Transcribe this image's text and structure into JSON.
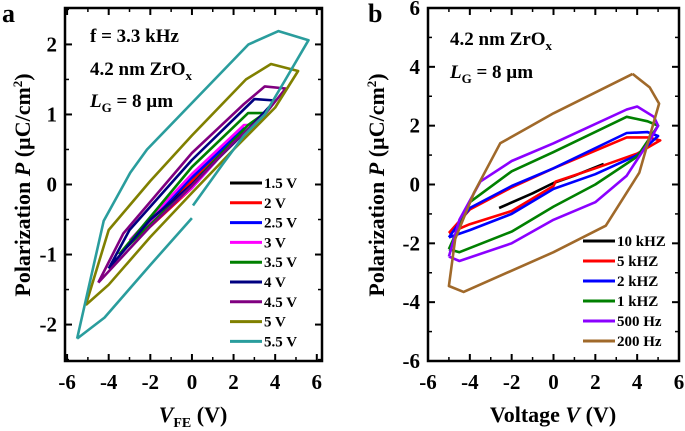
{
  "chart_data": [
    {
      "type": "line",
      "panel_letter": "a",
      "annotations": {
        "f": "f = 3.3 kHz",
        "film_main": "4.2 nm ZrO",
        "film_sub": "x",
        "lg_main": "L",
        "lg_sub": "G",
        "lg_rest": " = 8 µm"
      },
      "xlabel": {
        "main": "V",
        "sub": "FE",
        "rest": " (V)"
      },
      "ylabel": {
        "main": "Polarization ",
        "italic": "P",
        "rest": " (µC/cm",
        "sup": "2",
        "close": ")"
      },
      "xlim": [
        -6.1,
        6.25
      ],
      "ylim": [
        -2.52,
        2.52
      ],
      "xticks": [
        -6,
        -4,
        -2,
        0,
        2,
        4,
        6
      ],
      "yticks": [
        -2,
        -1,
        0,
        1,
        2
      ],
      "legend_position": "bottom-right",
      "series": [
        {
          "name": "1.5 V",
          "color": "#000000",
          "points": [
            [
              -1.5,
              -0.4
            ],
            [
              0,
              0.05
            ],
            [
              1.5,
              0.5
            ],
            [
              0.8,
              0.25
            ],
            [
              0,
              -0.02
            ],
            [
              -1.5,
              -0.4
            ]
          ]
        },
        {
          "name": "2 V",
          "color": "#ff0000",
          "points": [
            [
              -2,
              -0.6
            ],
            [
              0,
              0.05
            ],
            [
              2,
              0.7
            ],
            [
              1,
              0.35
            ],
            [
              0,
              -0.05
            ],
            [
              -2,
              -0.6
            ]
          ]
        },
        {
          "name": "2.5 V",
          "color": "#0000ff",
          "points": [
            [
              -2.5,
              -0.65
            ],
            [
              0,
              0.1
            ],
            [
              2.5,
              0.8
            ],
            [
              1.2,
              0.35
            ],
            [
              0,
              -0.05
            ],
            [
              -2.5,
              -0.65
            ]
          ]
        },
        {
          "name": "3 V",
          "color": "#ff00ff",
          "points": [
            [
              -3,
              -0.8
            ],
            [
              0,
              0.15
            ],
            [
              2.5,
              0.85
            ],
            [
              3,
              0.85
            ],
            [
              2,
              0.62
            ],
            [
              0,
              -0.05
            ],
            [
              -3,
              -0.8
            ]
          ]
        },
        {
          "name": "3.5 V",
          "color": "#008000",
          "points": [
            [
              -3.5,
              -1.0
            ],
            [
              0,
              0.25
            ],
            [
              2.7,
              1.02
            ],
            [
              3.5,
              1.02
            ],
            [
              2.7,
              0.85
            ],
            [
              0,
              0
            ],
            [
              -3.5,
              -1.0
            ]
          ]
        },
        {
          "name": "4 V",
          "color": "#000080",
          "points": [
            [
              -4,
              -1.2
            ],
            [
              -3,
              -0.65
            ],
            [
              0,
              0.35
            ],
            [
              3,
              1.22
            ],
            [
              4,
              1.2
            ],
            [
              3,
              0.88
            ],
            [
              0,
              0
            ],
            [
              -2,
              -0.5
            ],
            [
              -4,
              -1.2
            ]
          ]
        },
        {
          "name": "4.5 V",
          "color": "#800080",
          "points": [
            [
              -4.5,
              -1.4
            ],
            [
              -3.3,
              -0.7
            ],
            [
              0,
              0.45
            ],
            [
              2.5,
              1.15
            ],
            [
              3.5,
              1.4
            ],
            [
              4.5,
              1.37
            ],
            [
              3.5,
              1.0
            ],
            [
              2,
              0.6
            ],
            [
              0,
              -0.02
            ],
            [
              -2,
              -0.6
            ],
            [
              -4.5,
              -1.4
            ]
          ]
        },
        {
          "name": "5 V",
          "color": "#808000",
          "points": [
            [
              -5.1,
              -1.72
            ],
            [
              -4,
              -0.65
            ],
            [
              -2,
              0.05
            ],
            [
              0,
              0.7
            ],
            [
              2.6,
              1.5
            ],
            [
              3.8,
              1.72
            ],
            [
              5.1,
              1.62
            ],
            [
              4,
              1.1
            ],
            [
              2,
              0.5
            ],
            [
              0,
              -0.12
            ],
            [
              -2,
              -0.75
            ],
            [
              -4,
              -1.43
            ],
            [
              -5.1,
              -1.72
            ]
          ]
        },
        {
          "name": "5.5 V",
          "color": "#2a9d9d",
          "points": [
            [
              -5.52,
              -2.2
            ],
            [
              -4.24,
              -0.52
            ],
            [
              -2.96,
              0.17
            ],
            [
              -2.16,
              0.5
            ],
            [
              2.72,
              2.0
            ],
            [
              4.16,
              2.19
            ],
            [
              5.6,
              2.06
            ],
            [
              4.5,
              1.5
            ],
            [
              3.5,
              1.0
            ],
            [
              2.5,
              0.7
            ],
            [
              1.5,
              0.3
            ],
            [
              0.05,
              -0.3
            ],
            null,
            [
              0,
              -0.48
            ],
            [
              -2,
              -1.15
            ],
            [
              -4.2,
              -1.9
            ],
            [
              -5.52,
              -2.2
            ]
          ]
        }
      ]
    },
    {
      "type": "line",
      "panel_letter": "b",
      "annotations": {
        "film_main": "4.2 nm ZrO",
        "film_sub": "x",
        "lg_main": "L",
        "lg_sub": "G",
        "lg_rest": " = 8 µm"
      },
      "xlabel": {
        "main": "Voltage ",
        "italic": "V",
        "rest": " (V)"
      },
      "ylabel": {
        "main": "Polarization ",
        "italic": "P",
        "rest": " (µC/cm",
        "sup": "2",
        "close": ")"
      },
      "xlim": [
        -6,
        6
      ],
      "ylim": [
        -6,
        6
      ],
      "xticks": [
        -6,
        -4,
        -2,
        0,
        2,
        4,
        6
      ],
      "yticks": [
        -6,
        -4,
        -2,
        0,
        2,
        4,
        6
      ],
      "legend_position": "bottom-right",
      "series": [
        {
          "name": "10 kHZ",
          "color": "#000000",
          "points": [
            [
              -2.6,
              -0.8
            ],
            [
              -1,
              -0.3
            ],
            [
              0,
              0.05
            ],
            [
              1,
              0.3
            ],
            [
              2.4,
              0.7
            ]
          ]
        },
        {
          "name": "5 kHZ",
          "color": "#ff0000",
          "points": [
            [
              -5,
              -1.65
            ],
            [
              -4,
              -1.35
            ],
            [
              -2,
              -0.9
            ],
            [
              0,
              -0.05
            ],
            [
              0.1,
              0.1
            ],
            [
              2,
              0.55
            ],
            [
              4,
              1.05
            ],
            [
              5.1,
              1.5
            ],
            [
              4.5,
              1.6
            ],
            [
              3.5,
              1.6
            ],
            [
              0,
              0.55
            ],
            [
              -2,
              -0.1
            ],
            [
              -4,
              -0.85
            ],
            [
              -5,
              -1.65
            ]
          ]
        },
        {
          "name": "2 kHZ",
          "color": "#0000ff",
          "points": [
            [
              -5,
              -1.8
            ],
            [
              -4,
              -1.55
            ],
            [
              -2,
              -1.0
            ],
            [
              0,
              -0.15
            ],
            [
              2,
              0.35
            ],
            [
              4,
              1.0
            ],
            [
              5,
              1.65
            ],
            [
              4.5,
              1.78
            ],
            [
              3.5,
              1.75
            ],
            [
              0,
              0.55
            ],
            [
              -2,
              -0.05
            ],
            [
              -4,
              -0.8
            ],
            [
              -5,
              -1.8
            ]
          ]
        },
        {
          "name": "1 kHZ",
          "color": "#008000",
          "points": [
            [
              -5,
              -2.2
            ],
            [
              -4.5,
              -2.3
            ],
            [
              -2,
              -1.6
            ],
            [
              0,
              -0.75
            ],
            [
              2,
              0.0
            ],
            [
              4,
              0.95
            ],
            [
              5,
              2.0
            ],
            [
              4.5,
              2.15
            ],
            [
              3.5,
              2.3
            ],
            [
              0,
              1.1
            ],
            [
              -2,
              0.45
            ],
            [
              -4,
              -0.6
            ],
            [
              -5,
              -2.2
            ]
          ]
        },
        {
          "name": "500 Hz",
          "color": "#8b00ff",
          "points": [
            [
              -5,
              -2.45
            ],
            [
              -4.5,
              -2.6
            ],
            [
              -2,
              -2.0
            ],
            [
              0,
              -1.2
            ],
            [
              2,
              -0.6
            ],
            [
              3.5,
              0.3
            ],
            [
              4.6,
              1.5
            ],
            [
              5,
              2.0
            ],
            [
              4.8,
              2.3
            ],
            [
              4,
              2.65
            ],
            [
              3.5,
              2.55
            ],
            [
              0,
              1.4
            ],
            [
              -2,
              0.8
            ],
            [
              -3.5,
              0.1
            ],
            [
              -4.5,
              -1.2
            ],
            [
              -5,
              -2.45
            ]
          ]
        },
        {
          "name": "200 Hz",
          "color": "#a0692a",
          "points": [
            [
              3.78,
              3.76
            ],
            [
              4.6,
              3.3
            ],
            [
              5.05,
              2.75
            ],
            [
              4.1,
              0.4
            ],
            [
              2.5,
              -1.4
            ],
            [
              0,
              -2.3
            ],
            [
              -4.3,
              -3.65
            ],
            [
              -5,
              -3.45
            ],
            [
              -4.7,
              -1.85
            ],
            [
              -3.8,
              -0.28
            ],
            [
              -2.55,
              1.4
            ],
            [
              0,
              2.42
            ],
            [
              3.78,
              3.76
            ]
          ]
        }
      ]
    }
  ]
}
